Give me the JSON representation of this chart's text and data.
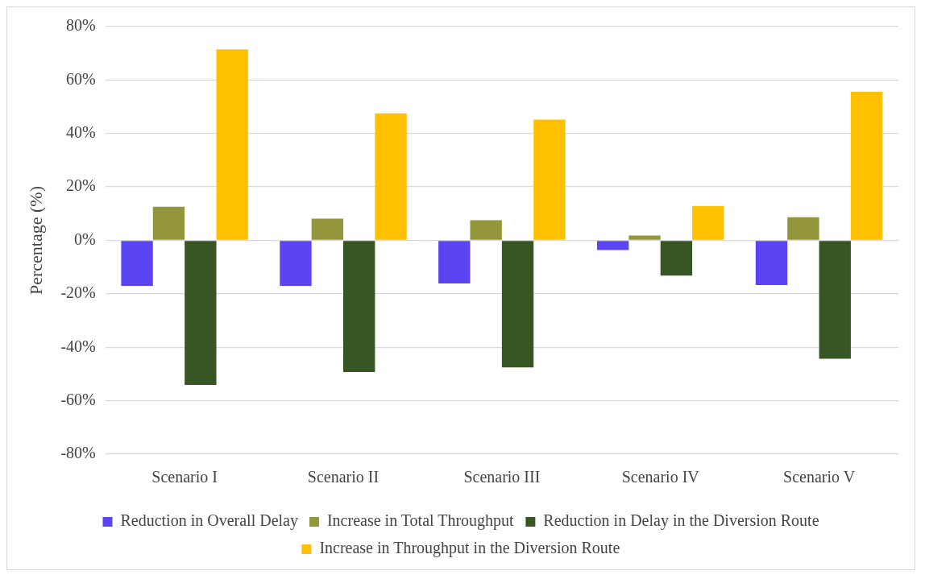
{
  "chart_data": {
    "type": "bar",
    "ylabel": "Percentage (%)",
    "categories": [
      "Scenario I",
      "Scenario II",
      "Scenario III",
      "Scenario IV",
      "Scenario V"
    ],
    "series": [
      {
        "name": "Reduction in Overall Delay",
        "color": "#5b45f2",
        "values": [
          -17.0,
          -17.0,
          -16.1,
          -3.6,
          -16.7
        ]
      },
      {
        "name": "Increase in Total Throughput",
        "color": "#93963a",
        "values": [
          12.6,
          8.1,
          7.5,
          1.8,
          8.7
        ]
      },
      {
        "name": "Reduction in Delay in the Diversion Route",
        "color": "#385623",
        "values": [
          -54.1,
          -49.3,
          -47.5,
          -13.2,
          -44.3
        ]
      },
      {
        "name": "Increase in Throughput in the Diversion Route",
        "color": "#ffc000",
        "values": [
          71.5,
          47.5,
          45.2,
          12.9,
          55.6
        ]
      }
    ],
    "ylim": [
      -80,
      80
    ],
    "yticks": [
      {
        "value": -80,
        "label": "-80%"
      },
      {
        "value": -60,
        "label": "-60%"
      },
      {
        "value": -40,
        "label": "-40%"
      },
      {
        "value": -20,
        "label": "-20%"
      },
      {
        "value": 0,
        "label": "0%"
      },
      {
        "value": 20,
        "label": "20%"
      },
      {
        "value": 40,
        "label": "40%"
      },
      {
        "value": 60,
        "label": "60%"
      },
      {
        "value": 80,
        "label": "80%"
      }
    ],
    "grid": "y",
    "legend": "bottom"
  }
}
